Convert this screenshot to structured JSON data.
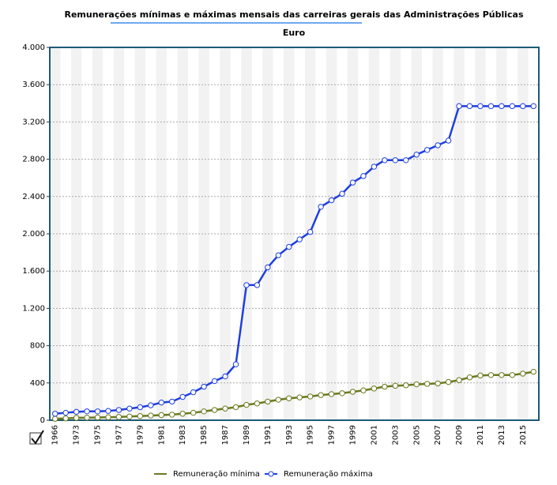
{
  "chart_data": {
    "type": "line",
    "title": "Remunerações mínimas e máximas mensais das carreiras gerais das Administrações Públicas",
    "subtitle": "Euro",
    "categories": [
      "1966",
      null,
      "1973",
      null,
      "1975",
      null,
      "1977",
      null,
      "1979",
      null,
      "1981",
      null,
      "1983",
      null,
      "1985",
      null,
      "1987",
      null,
      "1989",
      null,
      "1991",
      null,
      "1993",
      null,
      "1995",
      null,
      "1997",
      null,
      "1999",
      null,
      "2001",
      null,
      "2003",
      null,
      "2005",
      null,
      "2007",
      null,
      "2009",
      null,
      "2011",
      null,
      "2013",
      null,
      "2015",
      null
    ],
    "series": [
      {
        "name": "Remuneração mínima",
        "color": "#6b7a1f",
        "values": [
          15,
          20,
          25,
          28,
          30,
          32,
          35,
          40,
          45,
          50,
          55,
          60,
          70,
          80,
          95,
          110,
          125,
          140,
          165,
          180,
          200,
          220,
          235,
          245,
          255,
          270,
          280,
          290,
          305,
          320,
          340,
          360,
          370,
          375,
          385,
          390,
          395,
          410,
          430,
          460,
          480,
          485,
          485,
          485,
          500,
          520
        ]
      },
      {
        "name": "Remuneração máxima",
        "color": "#1f3fe0",
        "values": [
          70,
          80,
          90,
          95,
          95,
          100,
          110,
          125,
          140,
          160,
          190,
          200,
          250,
          300,
          360,
          420,
          470,
          600,
          1450,
          1450,
          1640,
          1770,
          1860,
          1940,
          2020,
          2290,
          2360,
          2430,
          2550,
          2620,
          2720,
          2790,
          2790,
          2790,
          2850,
          2900,
          2950,
          3000,
          3370,
          3370,
          3370,
          3370,
          3370,
          3370,
          3370,
          3370
        ]
      }
    ],
    "ylim": [
      0,
      4000
    ],
    "yticks": [
      0,
      400,
      800,
      {
        "value": 1200,
        "label": "1.200"
      },
      {
        "value": 1600,
        "label": "1.600"
      },
      {
        "value": 2000,
        "label": "2.000"
      },
      {
        "value": 2400,
        "label": "2.400"
      },
      {
        "value": 2800,
        "label": "2.800"
      },
      {
        "value": 3200,
        "label": "3.200"
      },
      {
        "value": 3600,
        "label": "3.600"
      },
      {
        "value": 4000,
        "label": "4.000"
      }
    ],
    "grid": true
  }
}
